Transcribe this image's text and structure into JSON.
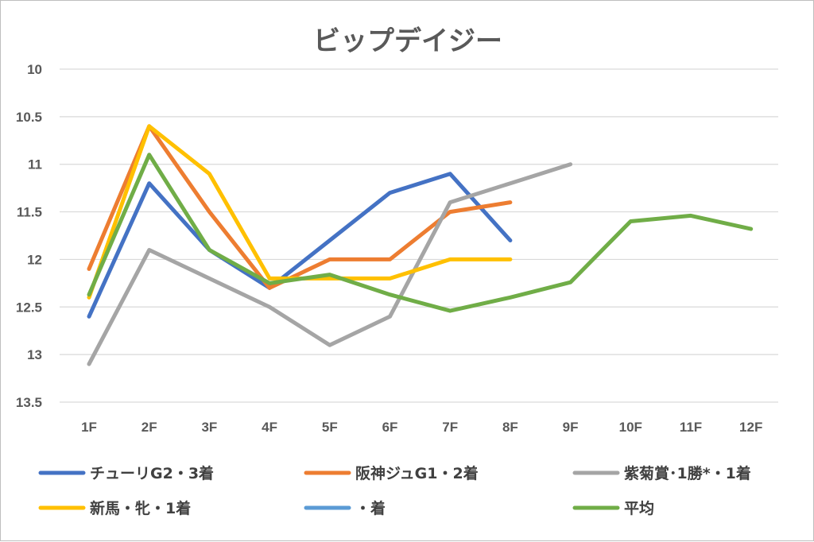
{
  "chart_data": {
    "type": "line",
    "title": "ビップデイジー",
    "categories": [
      "1F",
      "2F",
      "3F",
      "4F",
      "5F",
      "6F",
      "7F",
      "8F",
      "9F",
      "10F",
      "11F",
      "12F"
    ],
    "y_axis": {
      "reversed": true,
      "ylim": [
        10,
        13.5
      ],
      "ticks": [
        "10",
        "10.5",
        "11",
        "11.5",
        "12",
        "12.5",
        "13",
        "13.5"
      ]
    },
    "grid": true,
    "legend_position": "bottom",
    "series": [
      {
        "name": "チューリG2・3着",
        "color": "#4472c4",
        "values": [
          12.6,
          11.2,
          11.9,
          12.3,
          11.8,
          11.3,
          11.1,
          11.8,
          null,
          null,
          null,
          null
        ]
      },
      {
        "name": "阪神ジュG1・2着",
        "color": "#ed7d31",
        "values": [
          12.1,
          10.6,
          11.5,
          12.3,
          12.0,
          12.0,
          11.5,
          11.4,
          null,
          null,
          null,
          null
        ]
      },
      {
        "name": "紫菊賞･1勝*・1着",
        "color": "#a5a5a5",
        "values": [
          13.1,
          11.9,
          12.2,
          12.5,
          12.9,
          12.6,
          11.4,
          11.2,
          11.0,
          null,
          null,
          null
        ]
      },
      {
        "name": "新馬・牝・1着",
        "color": "#ffc000",
        "values": [
          12.4,
          10.6,
          11.1,
          12.2,
          12.2,
          12.2,
          12.0,
          12.0,
          null,
          null,
          null,
          null
        ]
      },
      {
        "name": "・着",
        "color": "#5b9bd5",
        "values": [
          null,
          null,
          null,
          null,
          null,
          null,
          null,
          null,
          null,
          null,
          null,
          null
        ]
      },
      {
        "name": "平均",
        "color": "#70ad47",
        "values": [
          12.37,
          10.9,
          11.9,
          12.25,
          12.16,
          12.37,
          12.54,
          12.4,
          12.24,
          11.6,
          11.54,
          11.68
        ]
      }
    ]
  }
}
